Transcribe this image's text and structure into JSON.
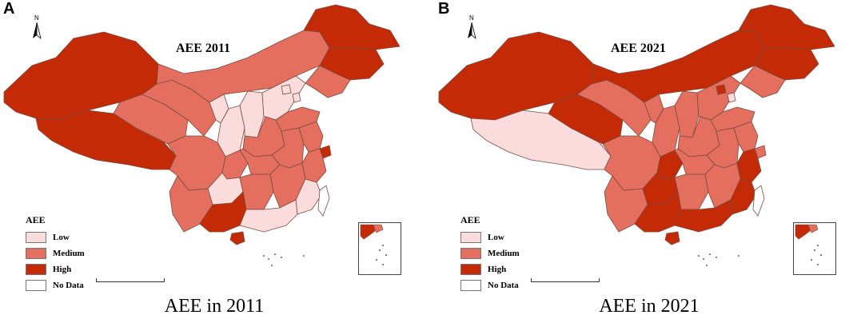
{
  "panels": [
    {
      "letter": "A",
      "north_label": "N",
      "map_title": "AEE 2011",
      "caption": "AEE in 2011",
      "region_classes": {
        "xinjiang": "High",
        "tibet": "High",
        "heilongjiang": "High",
        "jilin": "High",
        "inner_mongolia": "Medium",
        "qinghai": "Medium",
        "gansu": "Medium",
        "ningxia": "Low",
        "shaanxi": "Low",
        "shanxi": "Low",
        "hebei": "Low",
        "beijing": "Low",
        "tianjin": "Low",
        "liaoning": "Medium",
        "shandong": "Medium",
        "henan": "Medium",
        "sichuan": "Medium",
        "chongqing": "Medium",
        "hubei": "Medium",
        "anhui": "Medium",
        "jiangsu": "Medium",
        "shanghai": "High",
        "zhejiang": "Medium",
        "yunnan": "Medium",
        "guizhou": "Low",
        "hunan": "Medium",
        "jiangxi": "Medium",
        "fujian": "Low",
        "guangxi": "High",
        "guangdong": "Low",
        "hainan": "High",
        "taiwan": "No Data"
      }
    },
    {
      "letter": "B",
      "north_label": "N",
      "map_title": "AEE 2021",
      "caption": "AEE in 2021",
      "region_classes": {
        "xinjiang": "High",
        "tibet": "Low",
        "heilongjiang": "High",
        "jilin": "High",
        "inner_mongolia": "High",
        "qinghai": "High",
        "gansu": "Medium",
        "ningxia": "Medium",
        "shaanxi": "Medium",
        "shanxi": "Medium",
        "hebei": "Medium",
        "beijing": "High",
        "tianjin": "Low",
        "liaoning": "Medium",
        "shandong": "Medium",
        "henan": "Medium",
        "sichuan": "Medium",
        "chongqing": "High",
        "hubei": "Medium",
        "anhui": "Medium",
        "jiangsu": "Medium",
        "shanghai": "Medium",
        "zhejiang": "High",
        "yunnan": "Medium",
        "guizhou": "High",
        "hunan": "Medium",
        "jiangxi": "Medium",
        "fujian": "High",
        "guangxi": "High",
        "guangdong": "High",
        "hainan": "High",
        "taiwan": "No Data"
      }
    }
  ],
  "legend": {
    "title": "AEE",
    "items": [
      {
        "label": "Low",
        "color": "#fbdcdc"
      },
      {
        "label": "Medium",
        "color": "#e46f5f"
      },
      {
        "label": "High",
        "color": "#c42a06"
      },
      {
        "label": "No Data",
        "color": "#ffffff"
      }
    ]
  },
  "colors": {
    "border": "#7a4a40",
    "sea": "#ffffff"
  }
}
